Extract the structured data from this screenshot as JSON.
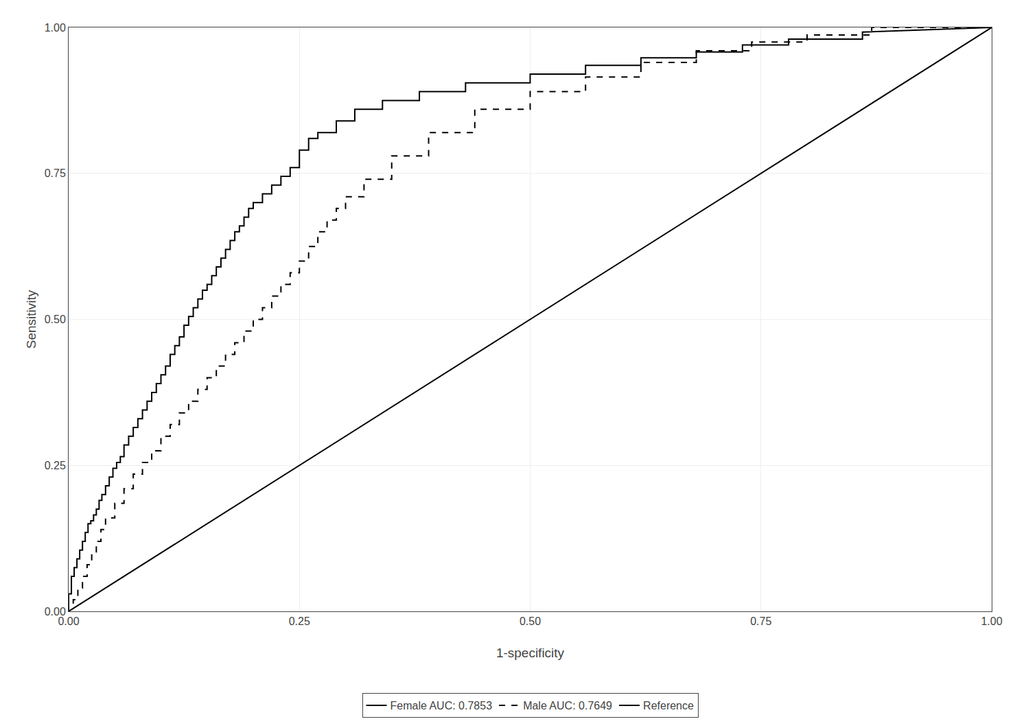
{
  "chart_data": {
    "type": "line",
    "xlabel": "1-specificity",
    "ylabel": "Sensitivity",
    "xlim": [
      0,
      1
    ],
    "ylim": [
      0,
      1
    ],
    "xticks": [
      {
        "value": 0,
        "label": "0.00"
      },
      {
        "value": 0.25,
        "label": "0.25"
      },
      {
        "value": 0.5,
        "label": "0.50"
      },
      {
        "value": 0.75,
        "label": "0.75"
      },
      {
        "value": 1,
        "label": "1.00"
      }
    ],
    "yticks": [
      {
        "value": 0,
        "label": "0.00"
      },
      {
        "value": 0.25,
        "label": "0.25"
      },
      {
        "value": 0.5,
        "label": "0.50"
      },
      {
        "value": 0.75,
        "label": "0.75"
      },
      {
        "value": 1,
        "label": "1.00"
      }
    ],
    "grid": true,
    "legend": "bottom",
    "series": [
      {
        "name": "Female AUC: 0.7853",
        "color": "#000000",
        "line_style": "solid",
        "x": [
          0.0,
          0.0,
          0.003,
          0.003,
          0.006,
          0.006,
          0.009,
          0.009,
          0.012,
          0.012,
          0.015,
          0.015,
          0.018,
          0.018,
          0.021,
          0.021,
          0.024,
          0.024,
          0.027,
          0.027,
          0.03,
          0.03,
          0.033,
          0.033,
          0.036,
          0.036,
          0.04,
          0.04,
          0.044,
          0.044,
          0.048,
          0.048,
          0.052,
          0.052,
          0.056,
          0.056,
          0.06,
          0.06,
          0.065,
          0.065,
          0.07,
          0.07,
          0.075,
          0.075,
          0.08,
          0.08,
          0.085,
          0.085,
          0.09,
          0.09,
          0.095,
          0.095,
          0.1,
          0.1,
          0.105,
          0.105,
          0.11,
          0.11,
          0.115,
          0.115,
          0.12,
          0.12,
          0.125,
          0.125,
          0.13,
          0.13,
          0.135,
          0.135,
          0.14,
          0.14,
          0.145,
          0.145,
          0.15,
          0.15,
          0.155,
          0.155,
          0.16,
          0.16,
          0.165,
          0.165,
          0.17,
          0.17,
          0.175,
          0.175,
          0.18,
          0.18,
          0.185,
          0.185,
          0.19,
          0.19,
          0.195,
          0.195,
          0.2,
          0.2,
          0.21,
          0.21,
          0.22,
          0.22,
          0.23,
          0.23,
          0.24,
          0.24,
          0.25,
          0.25,
          0.26,
          0.26,
          0.27,
          0.27,
          0.29,
          0.29,
          0.31,
          0.31,
          0.34,
          0.34,
          0.38,
          0.38,
          0.43,
          0.43,
          0.5,
          0.5,
          0.56,
          0.56,
          0.62,
          0.62,
          0.68,
          0.68,
          0.73,
          0.73,
          0.78,
          0.78,
          0.86,
          0.86,
          1.0
        ],
        "values": [
          0.0,
          0.03,
          0.03,
          0.06,
          0.06,
          0.075,
          0.075,
          0.09,
          0.09,
          0.105,
          0.105,
          0.12,
          0.12,
          0.135,
          0.135,
          0.15,
          0.15,
          0.155,
          0.155,
          0.165,
          0.165,
          0.175,
          0.175,
          0.19,
          0.19,
          0.2,
          0.2,
          0.215,
          0.215,
          0.23,
          0.23,
          0.245,
          0.245,
          0.255,
          0.255,
          0.265,
          0.265,
          0.285,
          0.285,
          0.3,
          0.3,
          0.315,
          0.315,
          0.33,
          0.33,
          0.345,
          0.345,
          0.36,
          0.36,
          0.375,
          0.375,
          0.39,
          0.39,
          0.405,
          0.405,
          0.42,
          0.42,
          0.44,
          0.44,
          0.455,
          0.455,
          0.47,
          0.47,
          0.49,
          0.49,
          0.505,
          0.505,
          0.52,
          0.52,
          0.535,
          0.535,
          0.55,
          0.55,
          0.56,
          0.56,
          0.575,
          0.575,
          0.59,
          0.59,
          0.605,
          0.605,
          0.62,
          0.62,
          0.635,
          0.635,
          0.65,
          0.65,
          0.66,
          0.66,
          0.675,
          0.675,
          0.69,
          0.69,
          0.7,
          0.7,
          0.715,
          0.715,
          0.73,
          0.73,
          0.745,
          0.745,
          0.76,
          0.76,
          0.79,
          0.79,
          0.81,
          0.81,
          0.82,
          0.82,
          0.84,
          0.84,
          0.86,
          0.86,
          0.875,
          0.875,
          0.89,
          0.89,
          0.905,
          0.905,
          0.92,
          0.92,
          0.935,
          0.935,
          0.948,
          0.948,
          0.958,
          0.958,
          0.97,
          0.97,
          0.98,
          0.98,
          0.992,
          1.0
        ]
      },
      {
        "name": "Male AUC: 0.7649",
        "color": "#000000",
        "line_style": "dashed",
        "x": [
          0.0,
          0.0,
          0.005,
          0.005,
          0.01,
          0.01,
          0.015,
          0.015,
          0.02,
          0.02,
          0.025,
          0.025,
          0.03,
          0.03,
          0.035,
          0.035,
          0.04,
          0.04,
          0.05,
          0.05,
          0.06,
          0.06,
          0.07,
          0.07,
          0.08,
          0.08,
          0.09,
          0.09,
          0.1,
          0.1,
          0.11,
          0.11,
          0.12,
          0.12,
          0.13,
          0.13,
          0.14,
          0.14,
          0.15,
          0.15,
          0.16,
          0.16,
          0.17,
          0.17,
          0.18,
          0.18,
          0.19,
          0.19,
          0.2,
          0.2,
          0.21,
          0.21,
          0.22,
          0.22,
          0.23,
          0.23,
          0.24,
          0.24,
          0.25,
          0.25,
          0.26,
          0.26,
          0.27,
          0.27,
          0.28,
          0.28,
          0.29,
          0.29,
          0.3,
          0.3,
          0.32,
          0.32,
          0.35,
          0.35,
          0.39,
          0.39,
          0.44,
          0.44,
          0.5,
          0.5,
          0.56,
          0.56,
          0.62,
          0.62,
          0.68,
          0.68,
          0.74,
          0.74,
          0.8,
          0.8,
          0.87,
          0.87,
          1.0
        ],
        "values": [
          0.0,
          0.01,
          0.01,
          0.02,
          0.02,
          0.04,
          0.04,
          0.06,
          0.06,
          0.08,
          0.08,
          0.1,
          0.1,
          0.12,
          0.12,
          0.14,
          0.14,
          0.16,
          0.16,
          0.185,
          0.185,
          0.21,
          0.21,
          0.235,
          0.235,
          0.255,
          0.255,
          0.275,
          0.275,
          0.3,
          0.3,
          0.32,
          0.32,
          0.34,
          0.34,
          0.36,
          0.36,
          0.38,
          0.38,
          0.4,
          0.4,
          0.42,
          0.42,
          0.44,
          0.44,
          0.46,
          0.46,
          0.48,
          0.48,
          0.5,
          0.5,
          0.52,
          0.52,
          0.54,
          0.54,
          0.56,
          0.56,
          0.58,
          0.58,
          0.6,
          0.6,
          0.625,
          0.625,
          0.65,
          0.65,
          0.67,
          0.67,
          0.69,
          0.69,
          0.71,
          0.71,
          0.74,
          0.74,
          0.78,
          0.78,
          0.82,
          0.82,
          0.86,
          0.86,
          0.89,
          0.89,
          0.915,
          0.915,
          0.94,
          0.94,
          0.96,
          0.96,
          0.975,
          0.975,
          0.987,
          0.987,
          1.0,
          1.0
        ]
      },
      {
        "name": "Reference",
        "color": "#000000",
        "line_style": "solid",
        "x": [
          0,
          1
        ],
        "values": [
          0,
          1
        ]
      }
    ]
  }
}
